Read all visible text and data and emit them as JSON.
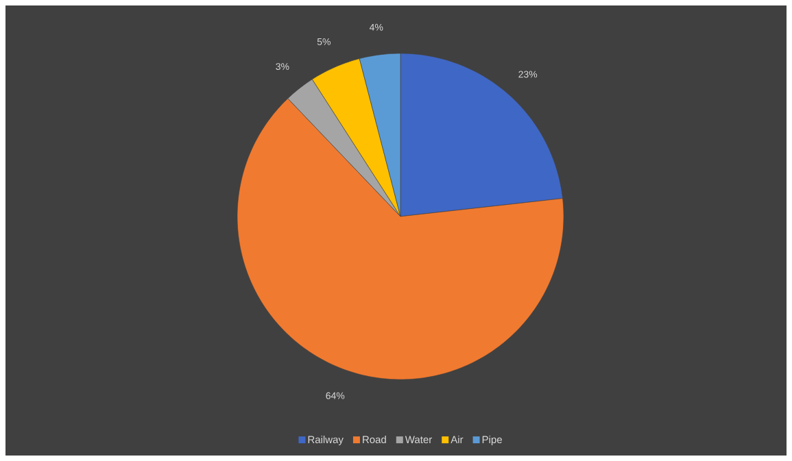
{
  "chart_data": {
    "type": "pie",
    "categories": [
      "Railway",
      "Road",
      "Water",
      "Air",
      "Pipe"
    ],
    "values": [
      23,
      64,
      3,
      5,
      4
    ],
    "colors": [
      "#3f67c5",
      "#f07a30",
      "#a5a5a5",
      "#ffc000",
      "#5b9bd5"
    ],
    "value_labels": [
      "23%",
      "64%",
      "3%",
      "5%",
      "4%"
    ],
    "legend": "bottom"
  }
}
